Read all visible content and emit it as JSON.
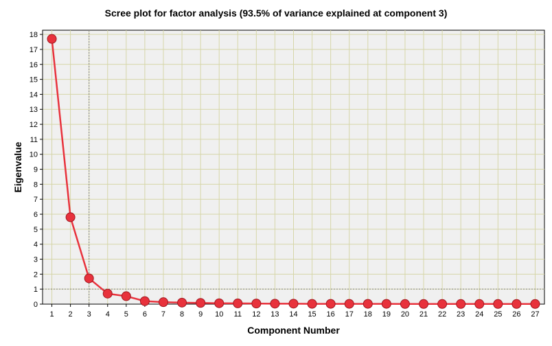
{
  "chart_data": {
    "type": "line",
    "title": "Scree plot for factor analysis (93.5% of variance explained at component 3)",
    "xlabel": "Component Number",
    "ylabel": "Eigenvalue",
    "x": [
      1,
      2,
      3,
      4,
      5,
      6,
      7,
      8,
      9,
      10,
      11,
      12,
      13,
      14,
      15,
      16,
      17,
      18,
      19,
      20,
      21,
      22,
      23,
      24,
      25,
      26,
      27
    ],
    "series": [
      {
        "name": "Eigenvalue",
        "values": [
          17.7,
          5.8,
          1.72,
          0.7,
          0.53,
          0.2,
          0.13,
          0.1,
          0.08,
          0.06,
          0.05,
          0.04,
          0.03,
          0.03,
          0.02,
          0.02,
          0.02,
          0.02,
          0.02,
          0.01,
          0.01,
          0.01,
          0.01,
          0.01,
          0.01,
          0.01,
          0.01
        ],
        "color": "#e8323c"
      }
    ],
    "xlim": [
      0.5,
      27.5
    ],
    "ylim": [
      0,
      18
    ],
    "xticks": [
      1,
      2,
      3,
      4,
      5,
      6,
      7,
      8,
      9,
      10,
      11,
      12,
      13,
      14,
      15,
      16,
      17,
      18,
      19,
      20,
      21,
      22,
      23,
      24,
      25,
      26,
      27
    ],
    "yticks": [
      0,
      1,
      2,
      3,
      4,
      5,
      6,
      7,
      8,
      9,
      10,
      11,
      12,
      13,
      14,
      15,
      16,
      17,
      18
    ],
    "reference_lines": [
      {
        "axis": "x",
        "value": 3
      },
      {
        "axis": "y",
        "value": 1
      }
    ],
    "grid": true,
    "colors": {
      "plot_background": "#f0f0f0",
      "grid": "#d6d6a8",
      "line": "#e8323c",
      "marker_fill": "#e8323c",
      "marker_edge": "#a01820",
      "reference_line": "#808080"
    }
  }
}
